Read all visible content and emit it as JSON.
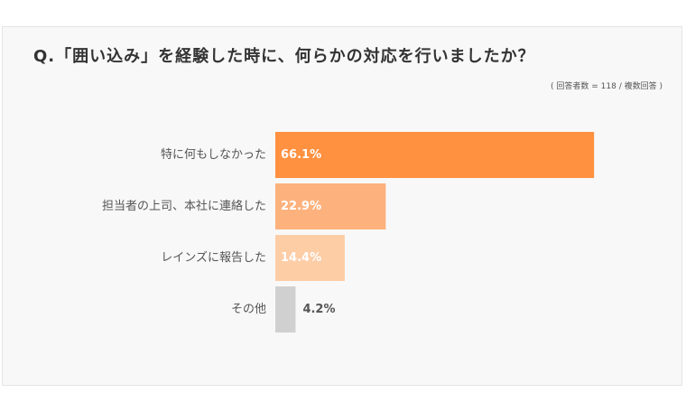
{
  "title": "Q.「囲い込み」を経験した時に、何らかの対応を行いましたか？",
  "note": "( 回答者数 = 118 / 複数回答 )",
  "chart_data": {
    "type": "bar",
    "orientation": "horizontal",
    "categories": [
      "特に何もしなかった",
      "担当者の上司、本社に連絡した",
      "レインズに報告した",
      "その他"
    ],
    "values": [
      66.1,
      22.9,
      14.4,
      4.2
    ],
    "value_labels": [
      "66.1%",
      "22.9%",
      "14.4%",
      "4.2%"
    ],
    "colors": [
      "#ff9140",
      "#fdb27d",
      "#fdcda6",
      "#d0d0d0"
    ],
    "label_colors": [
      "#ffffff",
      "#ffffff",
      "#ffffff",
      "#555555"
    ],
    "xlim": [
      0,
      70
    ],
    "grid": false,
    "legend": "none"
  }
}
